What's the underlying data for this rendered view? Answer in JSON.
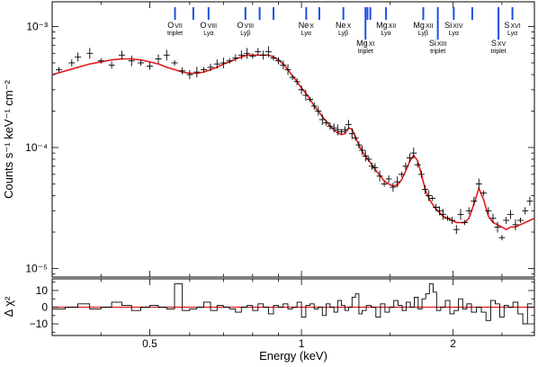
{
  "chart_data": {
    "type": "scatter",
    "xlabel": "Energy (keV)",
    "xscale": "log",
    "xlim": [
      0.32,
      2.9
    ],
    "xticks": [
      0.5,
      1,
      2
    ],
    "xtick_labels": [
      "0.5",
      "1",
      "2"
    ],
    "top_panel": {
      "ylabel": "Counts s⁻¹ keV⁻¹ cm⁻²",
      "yscale": "log",
      "ylim": [
        8.5e-06,
        0.0016
      ],
      "yticks": [
        0.001,
        0.0001,
        1e-05
      ],
      "ytick_labels": [
        "10⁻³",
        "10⁻⁴",
        "10⁻⁵"
      ],
      "data": {
        "name": "data",
        "color": "#000000",
        "x": [
          0.33,
          0.35,
          0.36,
          0.38,
          0.4,
          0.42,
          0.44,
          0.46,
          0.48,
          0.5,
          0.52,
          0.54,
          0.56,
          0.58,
          0.6,
          0.62,
          0.64,
          0.66,
          0.68,
          0.7,
          0.72,
          0.74,
          0.76,
          0.78,
          0.8,
          0.82,
          0.84,
          0.86,
          0.88,
          0.9,
          0.92,
          0.94,
          0.96,
          0.98,
          1.0,
          1.02,
          1.04,
          1.06,
          1.08,
          1.1,
          1.12,
          1.14,
          1.16,
          1.18,
          1.2,
          1.22,
          1.24,
          1.26,
          1.28,
          1.3,
          1.32,
          1.34,
          1.36,
          1.38,
          1.4,
          1.43,
          1.46,
          1.49,
          1.52,
          1.55,
          1.58,
          1.61,
          1.64,
          1.67,
          1.7,
          1.73,
          1.76,
          1.79,
          1.82,
          1.85,
          1.88,
          1.91,
          1.95,
          1.99,
          2.03,
          2.07,
          2.11,
          2.15,
          2.2,
          2.25,
          2.3,
          2.35,
          2.4,
          2.45,
          2.5,
          2.55,
          2.6,
          2.66,
          2.72,
          2.78,
          2.84
        ],
        "y": [
          0.00044,
          0.0005,
          0.00056,
          0.0006,
          0.00052,
          0.00048,
          0.00058,
          0.00052,
          0.0005,
          0.00047,
          0.00054,
          0.00058,
          0.0005,
          0.00043,
          0.0004,
          0.00042,
          0.00044,
          0.00046,
          0.00049,
          0.0005,
          0.00052,
          0.00055,
          0.00058,
          0.0006,
          0.00057,
          0.00062,
          0.00058,
          0.00062,
          0.00055,
          0.00052,
          0.00048,
          0.00044,
          0.00038,
          0.00035,
          0.0003,
          0.00027,
          0.00025,
          0.00022,
          0.0002,
          0.00017,
          0.00016,
          0.00015,
          0.000145,
          0.00014,
          0.000135,
          0.00014,
          0.000155,
          0.00013,
          0.00012,
          0.000105,
          9.5e-05,
          8.5e-05,
          8e-05,
          7e-05,
          6.8e-05,
          5.8e-05,
          5e-05,
          5.5e-05,
          4.7e-05,
          5.2e-05,
          6e-05,
          7e-05,
          8.2e-05,
          9e-05,
          7.2e-05,
          6e-05,
          4.5e-05,
          4e-05,
          3.8e-05,
          3.2e-05,
          3e-05,
          2.8e-05,
          2.6e-05,
          2.5e-05,
          2.1e-05,
          2.8e-05,
          2.4e-05,
          3e-05,
          3.6e-05,
          5e-05,
          4.2e-05,
          3e-05,
          2.6e-05,
          2.2e-05,
          1.8e-05,
          2.5e-05,
          2.8e-05,
          2.3e-05,
          2.5e-05,
          3e-05,
          3.6e-05
        ]
      },
      "model": {
        "name": "model",
        "color": "#e31a1c",
        "x": [
          0.32,
          0.34,
          0.36,
          0.38,
          0.4,
          0.42,
          0.44,
          0.46,
          0.48,
          0.5,
          0.52,
          0.54,
          0.56,
          0.58,
          0.6,
          0.62,
          0.64,
          0.66,
          0.68,
          0.7,
          0.72,
          0.74,
          0.76,
          0.78,
          0.8,
          0.82,
          0.84,
          0.86,
          0.88,
          0.9,
          0.92,
          0.94,
          0.96,
          0.98,
          1.0,
          1.02,
          1.04,
          1.06,
          1.08,
          1.1,
          1.12,
          1.14,
          1.16,
          1.18,
          1.2,
          1.22,
          1.24,
          1.26,
          1.28,
          1.3,
          1.32,
          1.34,
          1.36,
          1.38,
          1.4,
          1.43,
          1.46,
          1.49,
          1.52,
          1.55,
          1.58,
          1.61,
          1.64,
          1.67,
          1.7,
          1.73,
          1.76,
          1.79,
          1.82,
          1.85,
          1.88,
          1.91,
          1.95,
          1.99,
          2.03,
          2.07,
          2.11,
          2.15,
          2.2,
          2.25,
          2.3,
          2.35,
          2.4,
          2.45,
          2.5,
          2.55,
          2.6,
          2.66,
          2.72,
          2.78,
          2.84,
          2.9
        ],
        "y": [
          0.0004,
          0.00043,
          0.00046,
          0.00049,
          0.00051,
          0.00053,
          0.00054,
          0.00054,
          0.00053,
          0.00051,
          0.00049,
          0.00046,
          0.00044,
          0.00042,
          0.00041,
          0.00041,
          0.00042,
          0.00044,
          0.00046,
          0.00049,
          0.00051,
          0.00054,
          0.00056,
          0.00058,
          0.00058,
          0.00058,
          0.00058,
          0.00058,
          0.00056,
          0.00053,
          0.00049,
          0.00044,
          0.00039,
          0.00035,
          0.00031,
          0.00028,
          0.00025,
          0.00022,
          0.0002,
          0.00018,
          0.000165,
          0.00015,
          0.00014,
          0.000132,
          0.000128,
          0.00013,
          0.000145,
          0.000142,
          0.000122,
          0.000105,
          9.3e-05,
          8.5e-05,
          7.8e-05,
          7.2e-05,
          6.6e-05,
          5.9e-05,
          5.3e-05,
          5e-05,
          4.8e-05,
          4.9e-05,
          5.4e-05,
          6.4e-05,
          7.7e-05,
          8.6e-05,
          7.8e-05,
          6e-05,
          4.5e-05,
          3.8e-05,
          3.4e-05,
          3.1e-05,
          2.9e-05,
          2.7e-05,
          2.6e-05,
          2.5e-05,
          2.4e-05,
          2.4e-05,
          2.4e-05,
          2.6e-05,
          3.4e-05,
          4.6e-05,
          3.7e-05,
          2.7e-05,
          2.4e-05,
          2.3e-05,
          2.2e-05,
          2.1e-05,
          2.2e-05,
          2.2e-05,
          2.3e-05,
          2.4e-05,
          2.5e-05,
          2.6e-05
        ]
      },
      "line_markers": [
        {
          "e": 0.561,
          "label": "O",
          "ion": "VII",
          "sub": "triplet"
        },
        {
          "e": 0.61
        },
        {
          "e": 0.654,
          "label": "O",
          "ion": "VIII",
          "sub": "Lyα"
        },
        {
          "e": 0.774,
          "label": "O",
          "ion": "VIII",
          "sub": "Lyβ"
        },
        {
          "e": 0.826
        },
        {
          "e": 0.88
        },
        {
          "e": 1.022,
          "label": "Ne",
          "ion": "X",
          "sub": "Lyα"
        },
        {
          "e": 1.085
        },
        {
          "e": 1.211,
          "label": "Ne",
          "ion": "X",
          "sub": "Lyβ"
        },
        {
          "e": 1.34,
          "label": "Mg",
          "ion": "XI",
          "sub": "triplet",
          "low": true
        },
        {
          "e": 1.352
        },
        {
          "e": 1.37
        },
        {
          "e": 1.472,
          "label": "Mg",
          "ion": "XII",
          "sub": "Lyα"
        },
        {
          "e": 1.745,
          "label": "Mg",
          "ion": "XII",
          "sub": "Lyβ"
        },
        {
          "e": 1.865,
          "label": "Si",
          "ion": "XIII",
          "sub": "triplet",
          "low": true
        },
        {
          "e": 2.006,
          "label": "Si",
          "ion": "XIV",
          "sub": "Lyα"
        },
        {
          "e": 2.183
        },
        {
          "e": 2.461,
          "label": "S",
          "ion": "XV",
          "sub": "triplet",
          "low": true
        },
        {
          "e": 2.623,
          "label": "S",
          "ion": "XVI",
          "sub": "Lyα"
        }
      ]
    },
    "bottom_panel": {
      "ylabel": "Δ χ²",
      "ylim": [
        -17,
        17
      ],
      "yticks": [
        10,
        0,
        -10
      ],
      "ytick_labels": [
        "10",
        "0",
        "−10"
      ],
      "zero_line_color": "#e31a1c",
      "x": [
        0.33,
        0.35,
        0.37,
        0.39,
        0.41,
        0.43,
        0.45,
        0.47,
        0.49,
        0.51,
        0.53,
        0.55,
        0.57,
        0.59,
        0.61,
        0.63,
        0.65,
        0.67,
        0.69,
        0.71,
        0.73,
        0.75,
        0.77,
        0.79,
        0.81,
        0.83,
        0.85,
        0.87,
        0.89,
        0.91,
        0.93,
        0.95,
        0.97,
        0.99,
        1.01,
        1.03,
        1.05,
        1.07,
        1.09,
        1.11,
        1.13,
        1.15,
        1.17,
        1.19,
        1.21,
        1.23,
        1.25,
        1.27,
        1.29,
        1.31,
        1.33,
        1.36,
        1.39,
        1.42,
        1.45,
        1.48,
        1.51,
        1.54,
        1.57,
        1.6,
        1.63,
        1.66,
        1.69,
        1.72,
        1.75,
        1.78,
        1.81,
        1.84,
        1.87,
        1.91,
        1.95,
        1.99,
        2.03,
        2.07,
        2.11,
        2.15,
        2.2,
        2.25,
        2.3,
        2.35,
        2.4,
        2.45,
        2.5,
        2.55,
        2.6,
        2.66,
        2.72,
        2.78,
        2.84
      ],
      "values": [
        -1,
        0,
        2,
        -1,
        0,
        3,
        1,
        -2,
        0,
        1,
        0,
        -1,
        14,
        -2,
        -1,
        0,
        3,
        -2,
        1,
        0,
        -1,
        -3,
        0,
        1,
        -2,
        2,
        0,
        -4,
        1,
        0,
        2,
        -1,
        0,
        3,
        -6,
        1,
        2,
        -1,
        0,
        -5,
        2,
        0,
        -3,
        4,
        1,
        -2,
        0,
        6,
        8,
        -4,
        -2,
        1,
        0,
        -6,
        2,
        -3,
        0,
        4,
        1,
        -2,
        3,
        0,
        6,
        -1,
        5,
        8,
        14,
        9,
        -2,
        0,
        4,
        -4,
        -2,
        5,
        -1,
        2,
        -3,
        0,
        -3,
        -8,
        4,
        2,
        -6,
        1,
        0,
        3,
        -4,
        -10,
        2
      ]
    }
  }
}
